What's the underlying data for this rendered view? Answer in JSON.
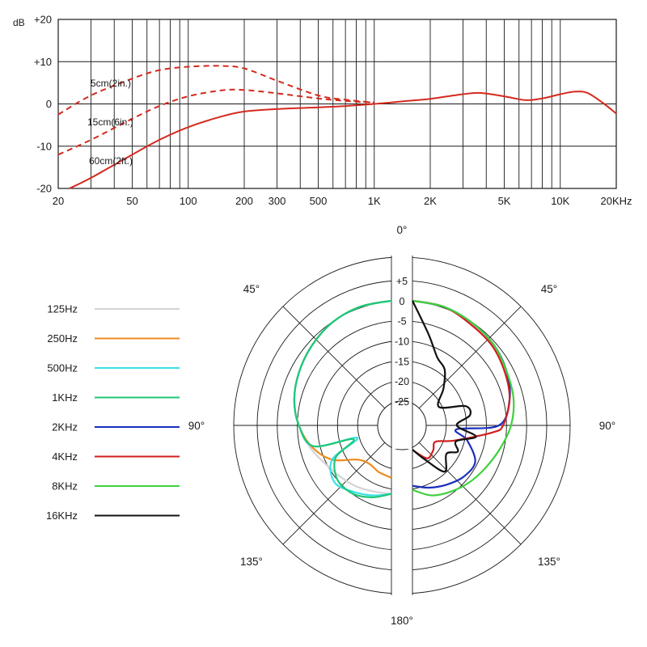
{
  "chart_data": [
    {
      "type": "line",
      "xscale": "log",
      "xlim": [
        20,
        20000
      ],
      "ylim": [
        -20,
        20
      ],
      "grid": true,
      "ylabel": "dB",
      "x_tick_labels": [
        {
          "value": 20,
          "label": "20"
        },
        {
          "value": 50,
          "label": "50"
        },
        {
          "value": 100,
          "label": "100"
        },
        {
          "value": 200,
          "label": "200"
        },
        {
          "value": 300,
          "label": "300"
        },
        {
          "value": 500,
          "label": "500"
        },
        {
          "value": 1000,
          "label": "1K"
        },
        {
          "value": 2000,
          "label": "2K"
        },
        {
          "value": 5000,
          "label": "5K"
        },
        {
          "value": 10000,
          "label": "10K"
        },
        {
          "value": 20000,
          "label": "20KHz"
        }
      ],
      "y_tick_labels": [
        {
          "value": 20,
          "label": "+20"
        },
        {
          "value": 10,
          "label": "+10"
        },
        {
          "value": 0,
          "label": "0"
        },
        {
          "value": -10,
          "label": "-10"
        },
        {
          "value": -20,
          "label": "-20"
        }
      ],
      "annotations": [
        {
          "text": "5cm(2in.)",
          "series": "proximity-5cm"
        },
        {
          "text": "15cm(6in.)",
          "series": "proximity-15cm"
        },
        {
          "text": "60cm(2ft.)",
          "series": "far-field-60cm"
        }
      ],
      "series": [
        {
          "id": "proximity-5cm",
          "color": "#d42a1e",
          "dash": true,
          "x": [
            20,
            30,
            50,
            70,
            100,
            150,
            200,
            300,
            500,
            700,
            1000
          ],
          "y": [
            -2.5,
            2,
            6,
            8,
            8.8,
            9,
            8.4,
            5.5,
            2,
            1,
            0.3
          ]
        },
        {
          "id": "proximity-15cm",
          "color": "#d42a1e",
          "dash": true,
          "x": [
            20,
            30,
            50,
            70,
            100,
            150,
            200,
            300,
            500,
            700,
            1000
          ],
          "y": [
            -12,
            -8.5,
            -3.5,
            -0.5,
            1.8,
            3.2,
            3.3,
            2.5,
            1.3,
            0.7,
            0.3
          ]
        },
        {
          "id": "far-field-60cm",
          "color": "#d42a1e",
          "dash": false,
          "x": [
            23,
            30,
            50,
            70,
            100,
            150,
            200,
            300,
            500,
            700,
            1000,
            1500,
            2000,
            3000,
            3700,
            5000,
            6500,
            8000,
            10000,
            12000,
            14000,
            17000,
            20000
          ],
          "y": [
            -20,
            -17.5,
            -12,
            -8.5,
            -5.5,
            -3,
            -1.8,
            -1.2,
            -0.8,
            -0.5,
            0,
            0.7,
            1.2,
            2.3,
            2.6,
            1.8,
            0.9,
            1.3,
            2.3,
            2.9,
            2.6,
            0.2,
            -2.3
          ]
        }
      ]
    },
    {
      "type": "polar",
      "angle_labels": [
        "0°",
        "45°",
        "45°",
        "90°",
        "90°",
        "135°",
        "135°",
        "180°"
      ],
      "radial_range": [
        -25,
        5
      ],
      "radial_tick_labels": [
        "+5",
        "0",
        "-5",
        "-10",
        "-15",
        "-20",
        "-25"
      ],
      "series": [
        {
          "name": "125Hz",
          "color": "#d3d3d3",
          "angles": [
            0,
            15,
            30,
            45,
            60,
            75,
            90,
            105,
            120,
            135,
            150,
            165,
            180
          ],
          "db": [
            0,
            -0.5,
            -1.5,
            -3,
            -4.5,
            -6,
            -8,
            -10,
            -12,
            -13,
            -13.5,
            -14,
            -14
          ]
        },
        {
          "name": "250Hz",
          "color": "#ee8b1e",
          "angles": [
            0,
            15,
            30,
            45,
            60,
            75,
            90,
            105,
            120,
            135,
            150,
            165,
            180
          ],
          "db": [
            0,
            -0.5,
            -1.5,
            -3,
            -4.5,
            -6,
            -8,
            -10.5,
            -14,
            -19,
            -20,
            -19,
            -18
          ]
        },
        {
          "name": "500Hz",
          "color": "#3ce0e8",
          "angles": [
            0,
            15,
            30,
            45,
            60,
            75,
            90,
            105,
            110,
            120,
            135,
            150,
            165,
            180
          ],
          "db": [
            0,
            -0.5,
            -1.5,
            -3,
            -4.5,
            -6,
            -8,
            -11,
            -22,
            -14,
            -11,
            -12,
            -13,
            -14
          ]
        },
        {
          "name": "1KHz",
          "color": "#1fc777",
          "angles": [
            0,
            15,
            30,
            45,
            60,
            75,
            90,
            105,
            110,
            120,
            135,
            150,
            165,
            180
          ],
          "db": [
            0,
            -0.5,
            -1.5,
            -3,
            -4.5,
            -6,
            -8,
            -11,
            -21,
            -15,
            -12,
            -11.5,
            -12.5,
            -14
          ]
        },
        {
          "name": "2KHz",
          "color": "#1a2ebd",
          "angles": [
            0,
            15,
            30,
            45,
            60,
            75,
            90,
            95,
            105,
            120,
            135,
            150,
            165,
            180
          ],
          "db": [
            0,
            -0.5,
            -1.5,
            -2.5,
            -4,
            -6,
            -9.5,
            -20,
            -17,
            -13,
            -13,
            -14,
            -15,
            -16
          ]
        },
        {
          "name": "4KHz",
          "color": "#d21e1e",
          "angles": [
            0,
            15,
            30,
            45,
            60,
            75,
            90,
            95,
            110,
            125,
            140,
            155,
            170,
            180
          ],
          "db": [
            0,
            -0.5,
            -2,
            -3,
            -4.5,
            -6,
            -8.5,
            -11,
            -20,
            -24,
            -23,
            -22,
            -24,
            -25
          ]
        },
        {
          "name": "8KHz",
          "color": "#3ed13e",
          "angles": [
            0,
            15,
            30,
            45,
            60,
            75,
            90,
            105,
            120,
            135,
            150,
            165,
            180
          ],
          "db": [
            0,
            -0.5,
            -1.5,
            -2.5,
            -4,
            -5,
            -6.5,
            -8.5,
            -10,
            -11,
            -12,
            -13,
            -15
          ]
        },
        {
          "name": "16KHz",
          "color": "#111111",
          "angles": [
            0,
            10,
            20,
            30,
            40,
            55,
            70,
            80,
            90,
            100,
            110,
            120,
            130,
            145,
            160,
            180
          ],
          "db": [
            0,
            -8,
            -13,
            -15,
            -19,
            -23,
            -17,
            -16.5,
            -20,
            -15,
            -19.5,
            -18,
            -20,
            -17,
            -22,
            -25
          ]
        }
      ]
    }
  ]
}
